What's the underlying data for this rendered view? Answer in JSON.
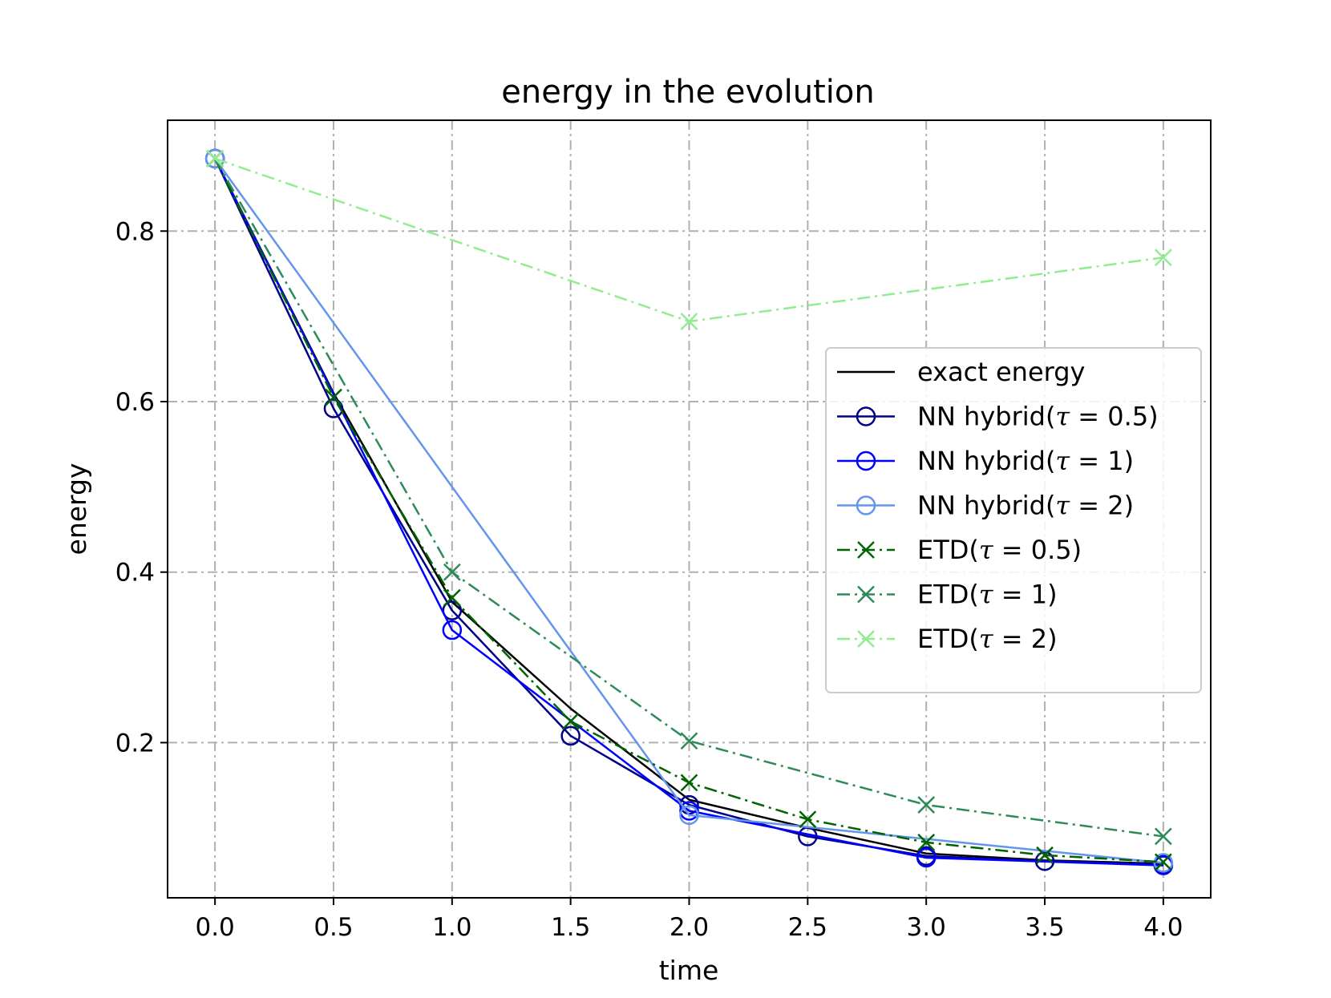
{
  "chart_data": {
    "type": "line",
    "title": "energy in the evolution",
    "xlabel": "time",
    "ylabel": "energy",
    "xlim": [
      -0.2,
      4.2
    ],
    "ylim": [
      0.018,
      0.93
    ],
    "xticks": [
      0.0,
      0.5,
      1.0,
      1.5,
      2.0,
      2.5,
      3.0,
      3.5,
      4.0
    ],
    "xtick_labels": [
      "0.0",
      "0.5",
      "1.0",
      "1.5",
      "2.0",
      "2.5",
      "3.0",
      "3.5",
      "4.0"
    ],
    "yticks": [
      0.2,
      0.4,
      0.6,
      0.8
    ],
    "ytick_labels": [
      "0.2",
      "0.4",
      "0.6",
      "0.8"
    ],
    "grid": true,
    "legend_position": "center-right",
    "series": [
      {
        "name": "exact energy",
        "color": "#000000",
        "linestyle": "solid",
        "marker": "none",
        "x": [
          0.0,
          0.5,
          1.0,
          1.5,
          2.0,
          2.5,
          3.0,
          3.5,
          4.0
        ],
        "y": [
          0.885,
          0.61,
          0.365,
          0.24,
          0.133,
          0.1,
          0.07,
          0.062,
          0.058
        ]
      },
      {
        "name": "NN hybrid(τ = 0.5)",
        "legend_prefix": "NN hybrid(",
        "legend_tau": "τ",
        "legend_suffix": " = 0.5)",
        "color": "#00008b",
        "linestyle": "solid",
        "marker": "circle",
        "x": [
          0.0,
          0.5,
          1.0,
          1.5,
          2.0,
          2.5,
          3.0,
          3.5,
          4.0
        ],
        "y": [
          0.885,
          0.592,
          0.355,
          0.208,
          0.127,
          0.09,
          0.067,
          0.061,
          0.057
        ]
      },
      {
        "name": "NN hybrid(τ = 1)",
        "legend_prefix": "NN hybrid(",
        "legend_tau": "τ",
        "legend_suffix": " = 1)",
        "color": "#0000ff",
        "linestyle": "solid",
        "marker": "circle",
        "x": [
          0.0,
          1.0,
          2.0,
          3.0,
          4.0
        ],
        "y": [
          0.885,
          0.332,
          0.12,
          0.065,
          0.056
        ]
      },
      {
        "name": "NN hybrid(τ = 2)",
        "legend_prefix": "NN hybrid(",
        "legend_tau": "τ",
        "legend_suffix": " = 2)",
        "color": "#6495ed",
        "linestyle": "solid",
        "marker": "circle",
        "x": [
          0.0,
          2.0,
          4.0
        ],
        "y": [
          0.885,
          0.115,
          0.059
        ]
      },
      {
        "name": "ETD(τ = 0.5)",
        "legend_prefix": "ETD(",
        "legend_tau": "τ",
        "legend_suffix": " = 0.5)",
        "color": "#006400",
        "linestyle": "dashdot",
        "marker": "x",
        "x": [
          0.0,
          0.5,
          1.0,
          1.5,
          2.0,
          2.5,
          3.0,
          3.5,
          4.0
        ],
        "y": [
          0.885,
          0.605,
          0.37,
          0.225,
          0.153,
          0.11,
          0.083,
          0.068,
          0.06
        ]
      },
      {
        "name": "ETD(τ = 1)",
        "legend_prefix": "ETD(",
        "legend_tau": "τ",
        "legend_suffix": " = 1)",
        "color": "#2e8b57",
        "linestyle": "dashdot",
        "marker": "x",
        "x": [
          0.0,
          1.0,
          2.0,
          3.0,
          4.0
        ],
        "y": [
          0.885,
          0.4,
          0.202,
          0.127,
          0.09
        ]
      },
      {
        "name": "ETD(τ = 2)",
        "legend_prefix": "ETD(",
        "legend_tau": "τ",
        "legend_suffix": " = 2)",
        "color": "#90ee90",
        "linestyle": "dashdot",
        "marker": "x",
        "x": [
          0.0,
          2.0,
          4.0
        ],
        "y": [
          0.885,
          0.694,
          0.769
        ]
      }
    ]
  }
}
